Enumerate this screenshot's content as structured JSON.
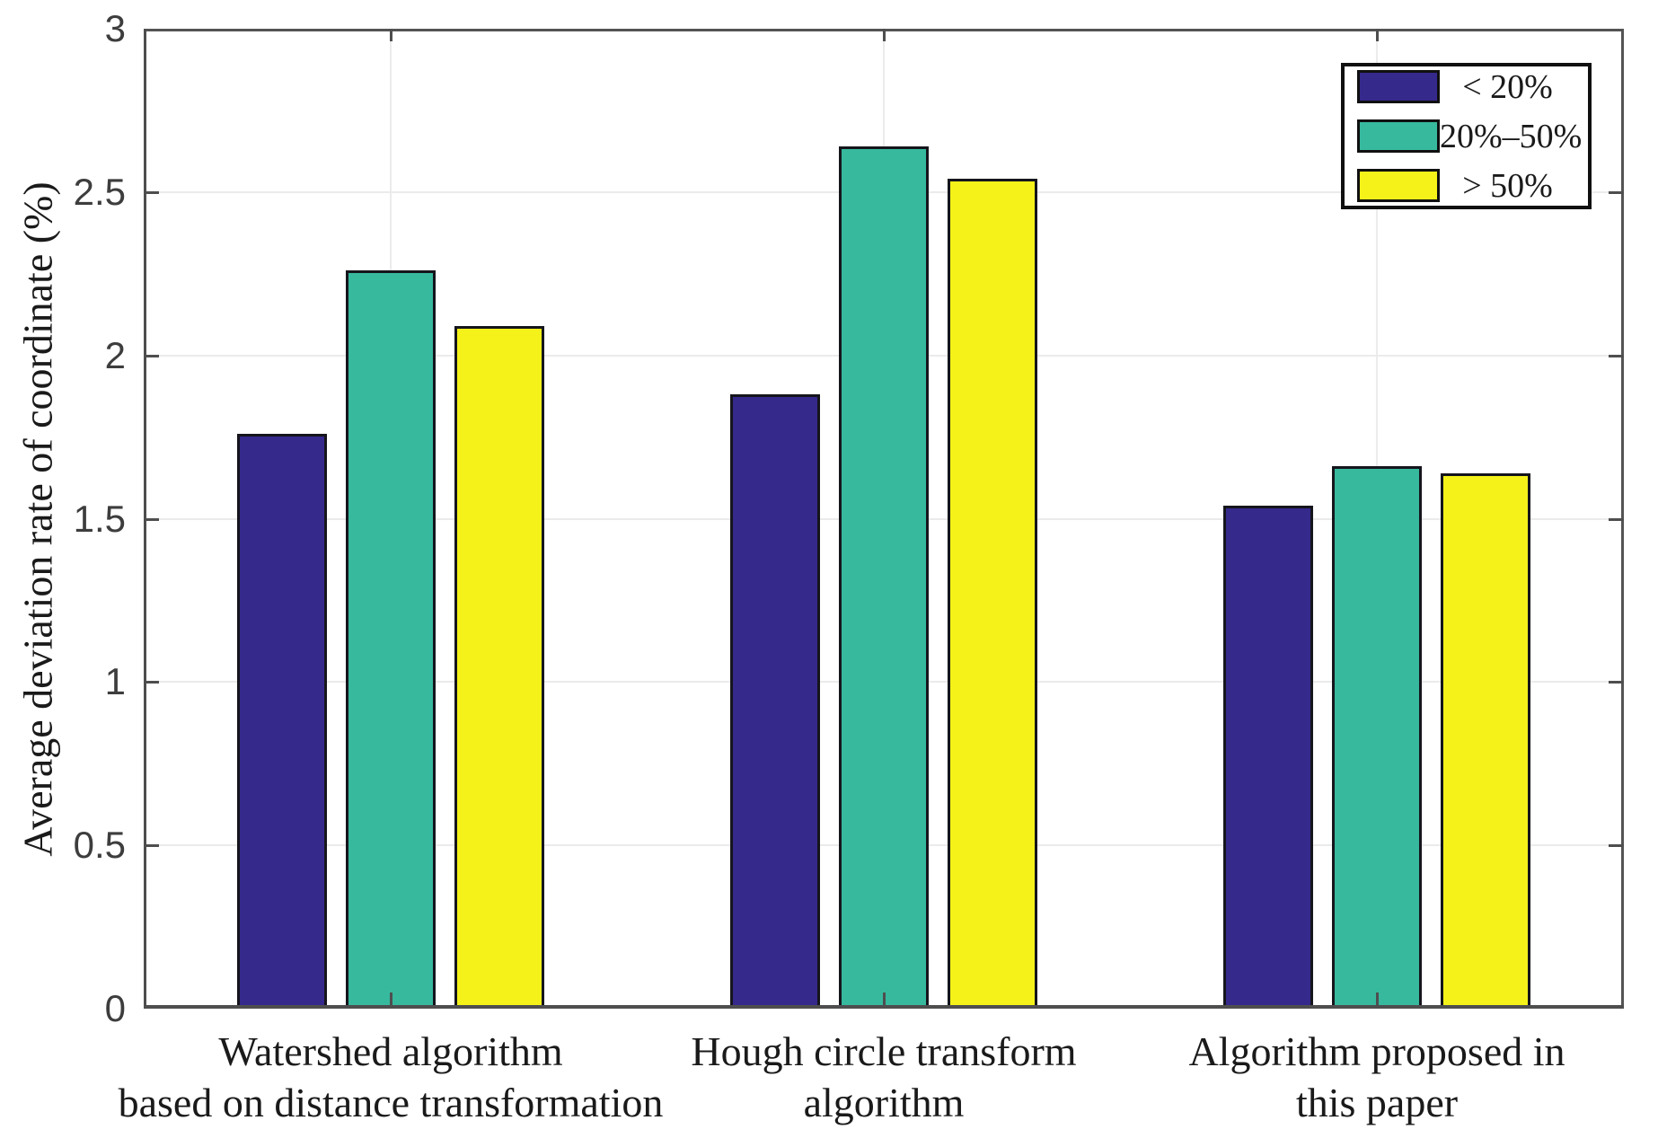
{
  "chart_data": {
    "type": "bar",
    "title": "",
    "xlabel": "",
    "ylabel": "Average deviation rate of coordinate (%)",
    "ylim": [
      0,
      3
    ],
    "yticks": [
      0,
      0.5,
      1,
      1.5,
      2,
      2.5,
      3
    ],
    "ytick_labels": [
      "0",
      "0.5",
      "1",
      "1.5",
      "2",
      "2.5",
      "3"
    ],
    "grid": "on",
    "legend_position": "top-right",
    "categories": [
      {
        "lines": [
          "Watershed algorithm",
          "based on distance transformation"
        ]
      },
      {
        "lines": [
          "Hough circle transform",
          "algorithm"
        ]
      },
      {
        "lines": [
          "Algorithm proposed in",
          "this paper"
        ]
      }
    ],
    "series": [
      {
        "name": "< 20%",
        "color": "#35298C",
        "values": [
          1.76,
          1.88,
          1.54
        ]
      },
      {
        "name": "20%–50%",
        "color": "#37B99E",
        "values": [
          2.26,
          2.64,
          1.66
        ]
      },
      {
        "name": "> 50%",
        "color": "#F4F219",
        "values": [
          2.09,
          2.54,
          1.64
        ]
      }
    ],
    "colors": {
      "background": "#ffffff",
      "axis": "#545454",
      "grid": "#ebebeb",
      "bar_edge": "#15151c",
      "tick_text": "#3d3d3d",
      "label_text": "#1a1a1a",
      "legend_border": "#101010"
    }
  }
}
